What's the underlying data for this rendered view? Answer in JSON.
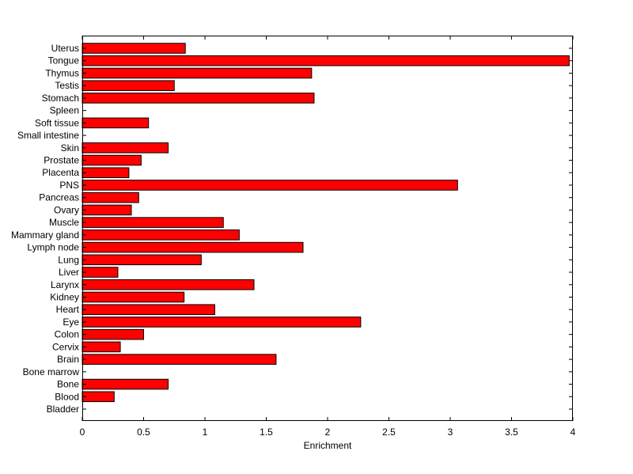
{
  "chart_data": {
    "type": "bar",
    "orientation": "horizontal",
    "xlabel": "Enrichment",
    "ylabel": "",
    "title": "",
    "xlim": [
      0,
      4
    ],
    "xticks": [
      "0",
      "0.5",
      "1",
      "1.5",
      "2",
      "2.5",
      "3",
      "3.5",
      "4"
    ],
    "grid": false,
    "bar_color": "#ff0000",
    "categories": [
      "Uterus",
      "Tongue",
      "Thymus",
      "Testis",
      "Stomach",
      "Spleen",
      "Soft tissue",
      "Small intestine",
      "Skin",
      "Prostate",
      "Placenta",
      "PNS",
      "Pancreas",
      "Ovary",
      "Muscle",
      "Mammary gland",
      "Lymph node",
      "Lung",
      "Liver",
      "Larynx",
      "Kidney",
      "Heart",
      "Eye",
      "Colon",
      "Cervix",
      "Brain",
      "Bone marrow",
      "Bone",
      "Blood",
      "Bladder"
    ],
    "values": [
      0.84,
      3.97,
      1.87,
      0.75,
      1.89,
      0,
      0.54,
      0,
      0.7,
      0.48,
      0.38,
      3.06,
      0.46,
      0.4,
      1.15,
      1.28,
      1.8,
      0.97,
      0.29,
      1.4,
      0.83,
      1.08,
      2.27,
      0.5,
      0.31,
      1.58,
      0,
      0.7,
      0.26,
      0
    ]
  }
}
